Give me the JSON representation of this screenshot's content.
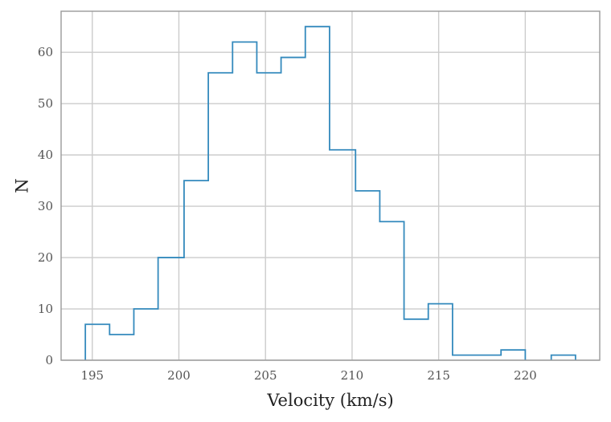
{
  "chart_data": {
    "type": "bar",
    "histtype": "step",
    "xlabel": "Velocity (km/s)",
    "ylabel": "N",
    "xlim": [
      193.2,
      224.3
    ],
    "ylim": [
      0,
      68
    ],
    "xticks": [
      195,
      200,
      205,
      210,
      215,
      220
    ],
    "yticks": [
      0,
      10,
      20,
      30,
      40,
      50,
      60
    ],
    "grid": true,
    "color": "#348abd",
    "bins": [
      {
        "x0": 194.6,
        "x1": 196.0,
        "count": 7
      },
      {
        "x0": 196.0,
        "x1": 197.4,
        "count": 5
      },
      {
        "x0": 197.4,
        "x1": 198.8,
        "count": 10
      },
      {
        "x0": 198.8,
        "x1": 200.3,
        "count": 20
      },
      {
        "x0": 200.3,
        "x1": 201.7,
        "count": 35
      },
      {
        "x0": 201.7,
        "x1": 203.1,
        "count": 56
      },
      {
        "x0": 203.1,
        "x1": 204.5,
        "count": 62
      },
      {
        "x0": 204.5,
        "x1": 205.9,
        "count": 56
      },
      {
        "x0": 205.9,
        "x1": 207.3,
        "count": 59
      },
      {
        "x0": 207.3,
        "x1": 208.7,
        "count": 65
      },
      {
        "x0": 208.7,
        "x1": 210.2,
        "count": 41
      },
      {
        "x0": 210.2,
        "x1": 211.6,
        "count": 33
      },
      {
        "x0": 211.6,
        "x1": 213.0,
        "count": 27
      },
      {
        "x0": 213.0,
        "x1": 214.4,
        "count": 8
      },
      {
        "x0": 214.4,
        "x1": 215.8,
        "count": 11
      },
      {
        "x0": 215.8,
        "x1": 217.2,
        "count": 1
      },
      {
        "x0": 217.2,
        "x1": 218.6,
        "count": 1
      },
      {
        "x0": 218.6,
        "x1": 220.0,
        "count": 2
      },
      {
        "x0": 220.0,
        "x1": 221.5,
        "count": 0
      },
      {
        "x0": 221.5,
        "x1": 222.9,
        "count": 1
      }
    ]
  }
}
